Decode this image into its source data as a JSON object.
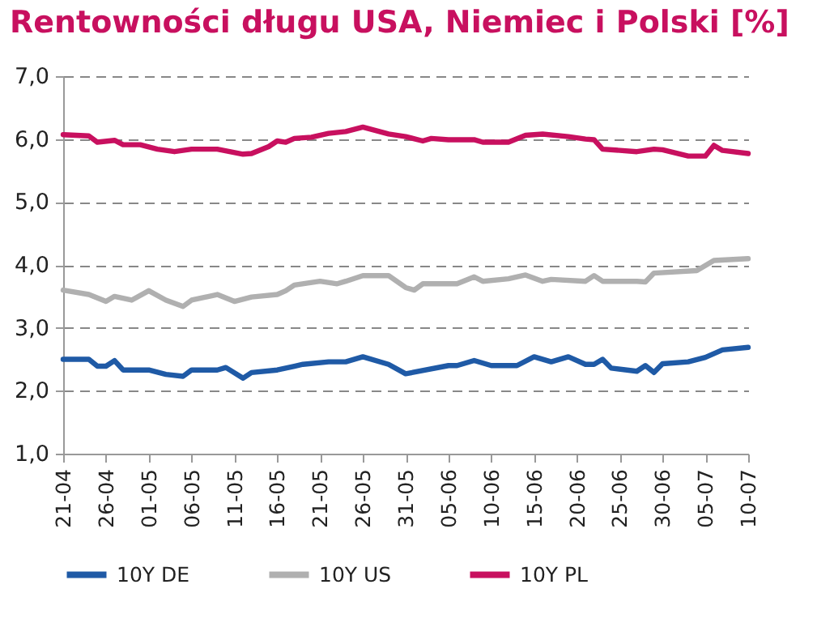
{
  "chart_data": {
    "type": "line",
    "title": "Rentowności długu USA, Niemiec i Polski [%]",
    "series": [
      {
        "name": "10Y DE",
        "color": "#1f5aa6",
        "x": [
          "--04-21",
          "--04-24",
          "--04-25",
          "--04-26",
          "--04-27",
          "--04-28",
          "--05-01",
          "--05-03",
          "--05-05",
          "--05-06",
          "--05-09",
          "--05-10",
          "--05-12",
          "--05-13",
          "--05-16",
          "--05-18",
          "--05-19",
          "--05-22",
          "--05-24",
          "--05-26",
          "--05-29",
          "--05-31",
          "--06-05",
          "--06-06",
          "--06-08",
          "--06-10",
          "--06-13",
          "--06-15",
          "--06-17",
          "--06-19",
          "--06-21",
          "--06-22",
          "--06-23",
          "--06-24",
          "--06-27",
          "--06-28",
          "--06-29",
          "--06-30",
          "--07-03",
          "--07-05",
          "--07-07",
          "--07-10"
        ],
        "values": [
          2.5,
          2.5,
          2.39,
          2.39,
          2.48,
          2.33,
          2.33,
          2.26,
          2.23,
          2.33,
          2.33,
          2.37,
          2.2,
          2.29,
          2.33,
          2.39,
          2.42,
          2.46,
          2.46,
          2.54,
          2.42,
          2.27,
          2.4,
          2.4,
          2.48,
          2.4,
          2.4,
          2.54,
          2.46,
          2.54,
          2.42,
          2.42,
          2.5,
          2.36,
          2.31,
          2.4,
          2.29,
          2.43,
          2.46,
          2.53,
          2.65,
          2.69
        ]
      },
      {
        "name": "10Y US",
        "color": "#b0b0b0",
        "x": [
          "--04-21",
          "--04-24",
          "--04-26",
          "--04-27",
          "--04-29",
          "--05-01",
          "--05-03",
          "--05-05",
          "--05-06",
          "--05-09",
          "--05-11",
          "--05-13",
          "--05-16",
          "--05-17",
          "--05-18",
          "--05-21",
          "--05-23",
          "--05-24",
          "--05-26",
          "--05-29",
          "--05-31",
          "--06-01",
          "--06-02",
          "--06-06",
          "--06-08",
          "--06-09",
          "--06-12",
          "--06-14",
          "--06-16",
          "--06-17",
          "--06-21",
          "--06-22",
          "--06-23",
          "--06-27",
          "--06-28",
          "--06-29",
          "--07-04",
          "--07-06",
          "--07-10"
        ],
        "values": [
          3.6,
          3.53,
          3.42,
          3.5,
          3.44,
          3.59,
          3.44,
          3.34,
          3.44,
          3.53,
          3.42,
          3.49,
          3.53,
          3.59,
          3.68,
          3.74,
          3.7,
          3.74,
          3.83,
          3.83,
          3.64,
          3.6,
          3.7,
          3.7,
          3.81,
          3.74,
          3.78,
          3.84,
          3.74,
          3.77,
          3.74,
          3.83,
          3.74,
          3.74,
          3.73,
          3.87,
          3.91,
          4.07,
          4.1
        ]
      },
      {
        "name": "10Y PL",
        "color": "#c8105f",
        "x": [
          "--04-21",
          "--04-24",
          "--04-25",
          "--04-27",
          "--04-28",
          "--04-30",
          "--05-02",
          "--05-04",
          "--05-06",
          "--05-09",
          "--05-12",
          "--05-13",
          "--05-15",
          "--05-16",
          "--05-17",
          "--05-18",
          "--05-20",
          "--05-22",
          "--05-24",
          "--05-26",
          "--05-29",
          "--05-31",
          "--06-02",
          "--06-03",
          "--06-05",
          "--06-08",
          "--06-09",
          "--06-12",
          "--06-14",
          "--06-16",
          "--06-19",
          "--06-21",
          "--06-22",
          "--06-23",
          "--06-27",
          "--06-29",
          "--06-30",
          "--07-03",
          "--07-05",
          "--07-06",
          "--07-07",
          "--07-10"
        ],
        "values": [
          6.07,
          6.05,
          5.95,
          5.98,
          5.91,
          5.91,
          5.84,
          5.8,
          5.84,
          5.84,
          5.76,
          5.77,
          5.88,
          5.97,
          5.95,
          6.01,
          6.03,
          6.09,
          6.12,
          6.19,
          6.08,
          6.04,
          5.97,
          6.01,
          5.99,
          5.99,
          5.95,
          5.95,
          6.06,
          6.08,
          6.04,
          6.0,
          5.99,
          5.84,
          5.8,
          5.84,
          5.83,
          5.73,
          5.73,
          5.9,
          5.82,
          5.77
        ]
      }
    ],
    "xlim": [
      "--04-21",
      "--07-10"
    ],
    "xticks": [
      {
        "value": "--04-21",
        "label": "21-04"
      },
      {
        "value": "--04-26",
        "label": "26-04"
      },
      {
        "value": "--05-01",
        "label": "01-05"
      },
      {
        "value": "--05-06",
        "label": "06-05"
      },
      {
        "value": "--05-11",
        "label": "11-05"
      },
      {
        "value": "--05-16",
        "label": "16-05"
      },
      {
        "value": "--05-21",
        "label": "21-05"
      },
      {
        "value": "--05-26",
        "label": "26-05"
      },
      {
        "value": "--05-31",
        "label": "31-05"
      },
      {
        "value": "--06-05",
        "label": "05-06"
      },
      {
        "value": "--06-10",
        "label": "10-06"
      },
      {
        "value": "--06-15",
        "label": "15-06"
      },
      {
        "value": "--06-20",
        "label": "20-06"
      },
      {
        "value": "--06-25",
        "label": "25-06"
      },
      {
        "value": "--06-30",
        "label": "30-06"
      },
      {
        "value": "--07-05",
        "label": "05-07"
      },
      {
        "value": "--07-10",
        "label": "10-07"
      }
    ],
    "ylim": [
      1,
      7
    ],
    "yticks": [
      {
        "value": 1,
        "label": "1,0"
      },
      {
        "value": 2,
        "label": "2,0"
      },
      {
        "value": 3,
        "label": "3,0"
      },
      {
        "value": 4,
        "label": "4,0"
      },
      {
        "value": 5,
        "label": "5,0"
      },
      {
        "value": 6,
        "label": "6,0"
      },
      {
        "value": 7,
        "label": "7,0"
      }
    ],
    "grid": "y",
    "legend": "bottom",
    "line_style": "solid",
    "marker": "none"
  }
}
